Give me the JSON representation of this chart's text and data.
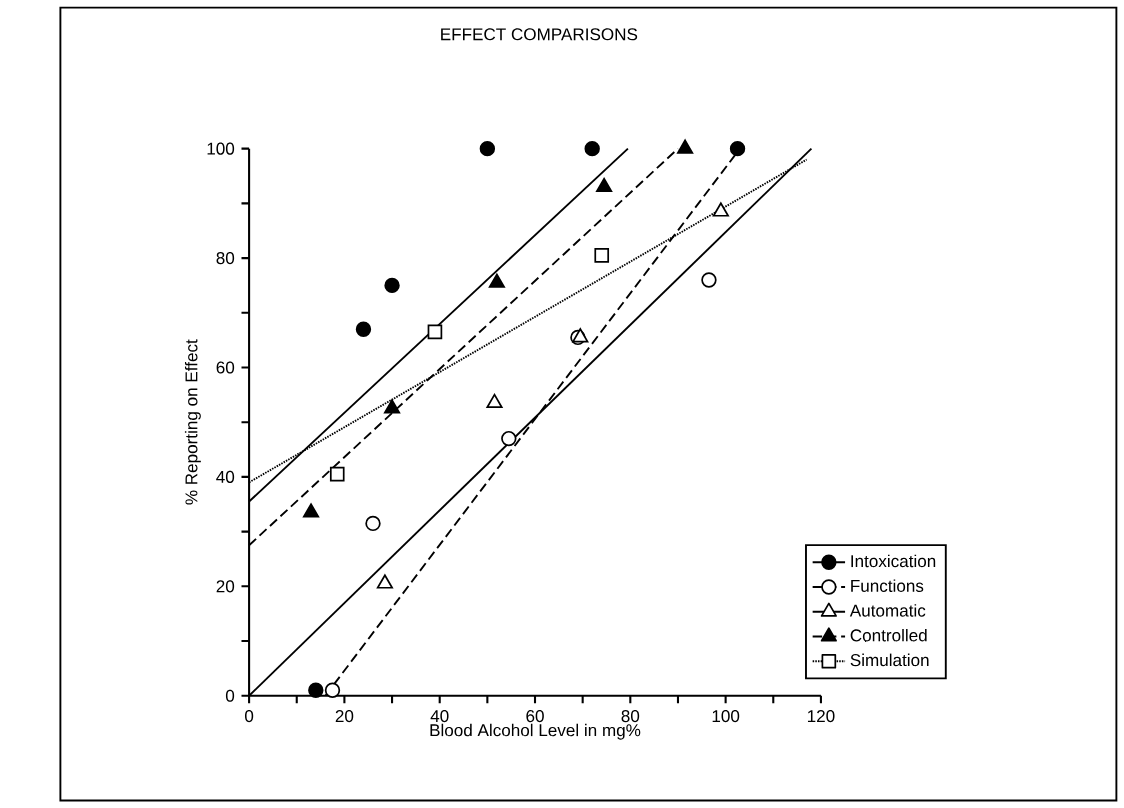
{
  "chart_data": {
    "type": "scatter",
    "title": "EFFECT COMPARISONS",
    "xlabel": "Blood Alcohol Level in mg%",
    "ylabel": "% Reporting on Effect",
    "xlim": [
      0,
      120
    ],
    "ylim": [
      0,
      100
    ],
    "xticks": [
      0,
      {
        "value": 10,
        "label": null
      },
      20,
      {
        "value": 30,
        "label": null
      },
      40,
      {
        "value": 50,
        "label": null
      },
      60,
      {
        "value": 70,
        "label": null
      },
      80,
      {
        "value": 90,
        "label": null
      },
      100,
      {
        "value": 110,
        "label": null
      },
      120
    ],
    "yticks": [
      0,
      {
        "value": 10,
        "label": null
      },
      20,
      {
        "value": 30,
        "label": null
      },
      40,
      {
        "value": 50,
        "label": null
      },
      60,
      {
        "value": 70,
        "label": null
      },
      80,
      {
        "value": 90,
        "label": null
      },
      100
    ],
    "grid": false,
    "legend": "bottom right",
    "series": [
      {
        "name": "Intoxication",
        "marker": "circle",
        "color": "#000000",
        "x": [
          14,
          24,
          30,
          50,
          72,
          102.5
        ],
        "values": [
          1,
          67,
          75,
          100,
          100,
          100
        ]
      },
      {
        "name": "Functions",
        "marker": "circle",
        "color": "#ffffff",
        "x": [
          17.5,
          26,
          54.5,
          69,
          96.5
        ],
        "values": [
          1,
          31.5,
          47,
          65.5,
          76
        ]
      },
      {
        "name": "Automatic",
        "marker": "triangle",
        "color": "#ffffff",
        "x": [
          28.5,
          51.5,
          69.5,
          99
        ],
        "values": [
          20.5,
          53.5,
          65.5,
          88.5
        ]
      },
      {
        "name": "Controlled",
        "marker": "triangle",
        "color": "#000000",
        "x": [
          13,
          30,
          52,
          74.5,
          91.5
        ],
        "values": [
          33.5,
          52.5,
          75.5,
          93,
          100
        ]
      },
      {
        "name": "Simulation",
        "marker": "square",
        "color": "#ffffff",
        "x": [
          18.5,
          39,
          74
        ],
        "values": [
          40.5,
          66.5,
          80.5
        ]
      },
      {
        "type": "line",
        "line_style": "solid",
        "color": "#000000",
        "x": [
          0,
          79.5
        ],
        "values": [
          35.5,
          100
        ]
      },
      {
        "type": "line",
        "line_style": "dashed",
        "color": "#000000",
        "x": [
          16,
          103
        ],
        "values": [
          0,
          100
        ]
      },
      {
        "type": "line",
        "line_style": "solid",
        "color": "#000000",
        "x": [
          0,
          118
        ],
        "values": [
          0,
          100
        ]
      },
      {
        "type": "line",
        "line_style": "dashed",
        "color": "#000000",
        "x": [
          0,
          90
        ],
        "values": [
          27.5,
          100
        ]
      },
      {
        "type": "line",
        "line_style": "dotted",
        "color": "#000000",
        "x": [
          0,
          117
        ],
        "values": [
          39,
          98
        ]
      }
    ]
  }
}
